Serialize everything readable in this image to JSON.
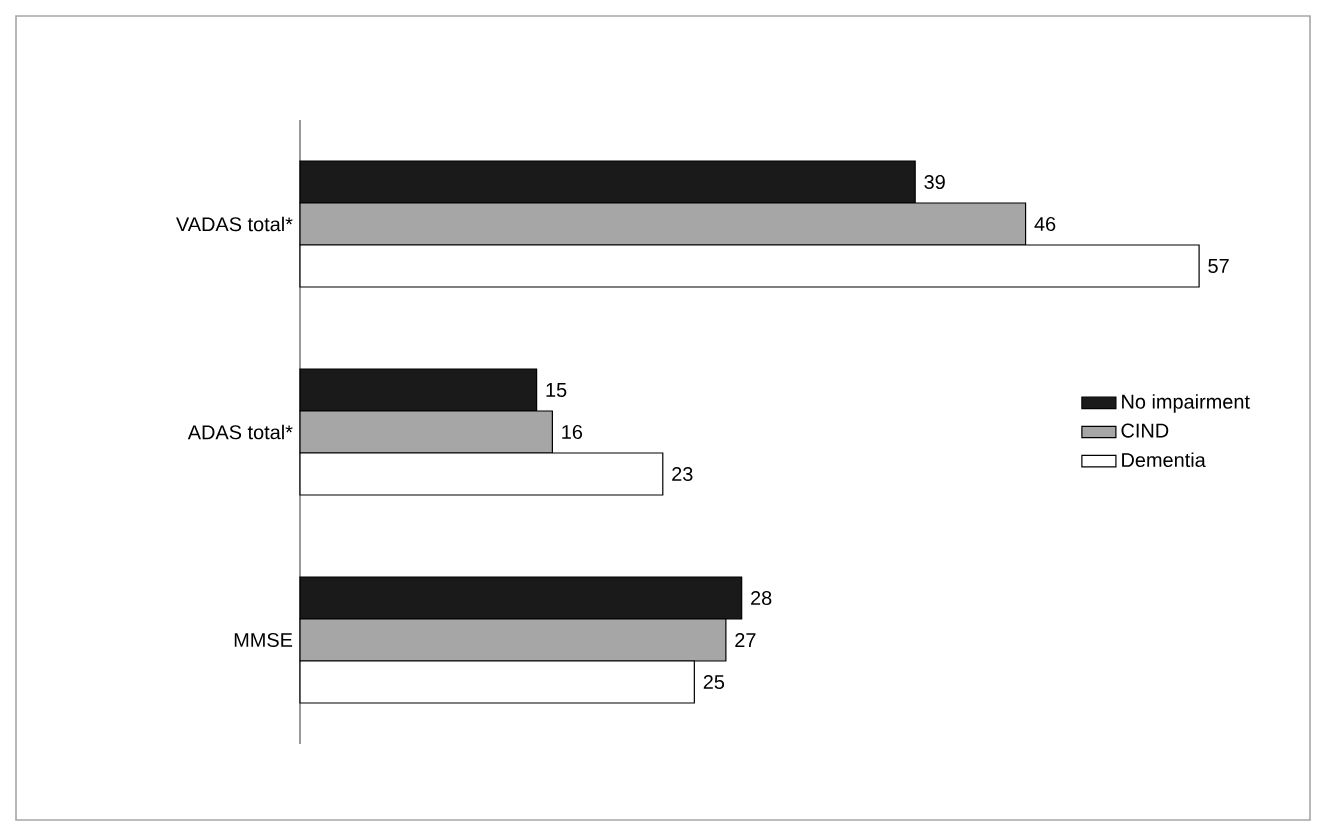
{
  "chart_data": {
    "type": "bar",
    "orientation": "horizontal",
    "categories": [
      "VADAS total*",
      "ADAS total*",
      "MMSE"
    ],
    "series": [
      {
        "name": "No impairment",
        "color": "#1a1a1a",
        "values": [
          39,
          15,
          28
        ]
      },
      {
        "name": "CIND",
        "color": "#a6a6a6",
        "values": [
          46,
          16,
          27
        ]
      },
      {
        "name": "Dementia",
        "color": "#ffffff",
        "values": [
          57,
          23,
          25
        ]
      }
    ],
    "data_labels": true,
    "legend": "right"
  }
}
